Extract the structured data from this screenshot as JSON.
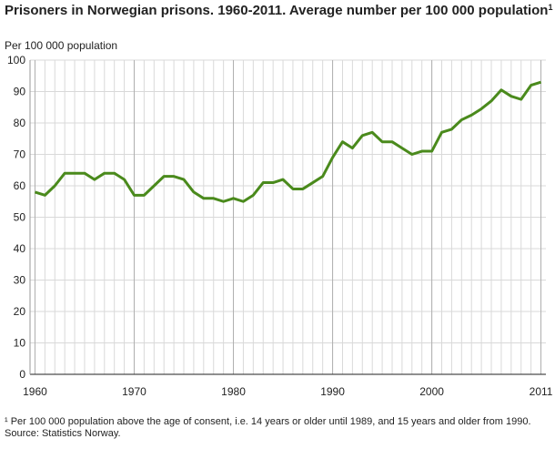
{
  "chart_data": {
    "type": "line",
    "title": "Prisoners in Norwegian prisons. 1960-2011. Average number per 100 000 population",
    "title_superscript": "1",
    "y_label": "Per 100 000 population",
    "footnote": "¹ Per 100 000 population above the age of consent, i.e. 14 years or older until 1989, and 15 years and older from 1990.",
    "source": "Source: Statistics Norway.",
    "x": [
      1960,
      1961,
      1962,
      1963,
      1964,
      1965,
      1966,
      1967,
      1968,
      1969,
      1970,
      1971,
      1972,
      1973,
      1974,
      1975,
      1976,
      1977,
      1978,
      1979,
      1980,
      1981,
      1982,
      1983,
      1984,
      1985,
      1986,
      1987,
      1988,
      1989,
      1990,
      1991,
      1992,
      1993,
      1994,
      1995,
      1996,
      1997,
      1998,
      1999,
      2000,
      2001,
      2002,
      2003,
      2004,
      2005,
      2006,
      2007,
      2008,
      2009,
      2010,
      2011
    ],
    "series": [
      {
        "name": "Prisoners per 100 000 population",
        "color": "#4a8a1c",
        "values": [
          58,
          57,
          60,
          64,
          64,
          64,
          62,
          64,
          64,
          62,
          57,
          57,
          60,
          63,
          63,
          62,
          58,
          56,
          56,
          55,
          56,
          55,
          57,
          61,
          61,
          62,
          59,
          59,
          61,
          63,
          69,
          74,
          72,
          76,
          77,
          74,
          74,
          72,
          70,
          71,
          71,
          77,
          78,
          81,
          82.5,
          84.5,
          87,
          90.5,
          88.5,
          87.5,
          92,
          93
        ]
      }
    ],
    "xlim": [
      1959.5,
      2011.5
    ],
    "xticks": [
      1960,
      1970,
      1980,
      1990,
      2000,
      2011
    ],
    "ylim": [
      0,
      100
    ],
    "yticks": [
      0,
      10,
      20,
      30,
      40,
      50,
      60,
      70,
      80,
      90,
      100
    ],
    "grid": true
  }
}
